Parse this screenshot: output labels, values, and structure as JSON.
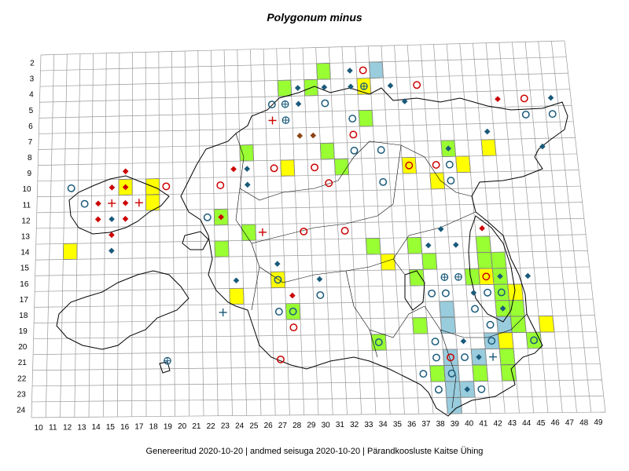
{
  "title": "Polygonum minus",
  "footer": "Genereeritud 2020-10-20  |  andmed seisuga 2020-10-20  |  Pärandkoosluste Kaitse Ühing",
  "grid": {
    "row_labels": [
      "2",
      "3",
      "4",
      "5",
      "6",
      "7",
      "8",
      "9",
      "10",
      "11",
      "12",
      "13",
      "14",
      "15",
      "16",
      "17",
      "18",
      "19",
      "20",
      "21",
      "22",
      "23",
      "24"
    ],
    "col_labels": [
      "10",
      "11",
      "12",
      "13",
      "14",
      "15",
      "16",
      "17",
      "18",
      "19",
      "20",
      "21",
      "22",
      "23",
      "24",
      "25",
      "26",
      "27",
      "28",
      "29",
      "30",
      "31",
      "32",
      "33",
      "34",
      "35",
      "36",
      "37",
      "38",
      "39",
      "40",
      "41",
      "42",
      "43",
      "44",
      "45",
      "46",
      "47",
      "48",
      "49"
    ]
  },
  "colors": {
    "green_cell": "#99ff33",
    "yellow_cell": "#ffff00",
    "blue_cell": "#99ccdd",
    "red_marker": "#cc0000",
    "blue_marker": "#1a5a7a",
    "brown_marker": "#8b4513",
    "grid_line": "#999999",
    "coastline": "#000000"
  },
  "marker_types": [
    "green-square",
    "yellow-square",
    "blue-square",
    "red-circle",
    "blue-circle",
    "red-diamond",
    "blue-diamond",
    "brown-diamond",
    "red-cross",
    "blue-cross",
    "blue-circle-cross"
  ],
  "cells": [
    {
      "c": "31",
      "r": "3",
      "t": "green-square"
    },
    {
      "c": "35",
      "r": "3",
      "t": "blue-square"
    },
    {
      "c": "28",
      "r": "4",
      "t": "green-square"
    },
    {
      "c": "30",
      "r": "4",
      "t": "green-square"
    },
    {
      "c": "34",
      "r": "4",
      "t": "yellow-square"
    },
    {
      "c": "34",
      "r": "6",
      "t": "green-square"
    },
    {
      "c": "43",
      "r": "8",
      "t": "yellow-square"
    },
    {
      "c": "40",
      "r": "8",
      "t": "green-square"
    },
    {
      "c": "25",
      "r": "8",
      "t": "green-square"
    },
    {
      "c": "28",
      "r": "9",
      "t": "yellow-square"
    },
    {
      "c": "31",
      "r": "8",
      "t": "green-square"
    },
    {
      "c": "32",
      "r": "9",
      "t": "green-square"
    },
    {
      "c": "37",
      "r": "9",
      "t": "yellow-square"
    },
    {
      "c": "41",
      "r": "9",
      "t": "yellow-square"
    },
    {
      "c": "39",
      "r": "10",
      "t": "yellow-square"
    },
    {
      "c": "16",
      "r": "10",
      "t": "yellow-square"
    },
    {
      "c": "18",
      "r": "10",
      "t": "yellow-square"
    },
    {
      "c": "18",
      "r": "11",
      "t": "yellow-square"
    },
    {
      "c": "23",
      "r": "12",
      "t": "green-square"
    },
    {
      "c": "25",
      "r": "13",
      "t": "green-square"
    },
    {
      "c": "12",
      "r": "14",
      "t": "yellow-square"
    },
    {
      "c": "23",
      "r": "14",
      "t": "green-square"
    },
    {
      "c": "34",
      "r": "14",
      "t": "green-square"
    },
    {
      "c": "37",
      "r": "14",
      "t": "green-square"
    },
    {
      "c": "42",
      "r": "14",
      "t": "green-square"
    },
    {
      "c": "35",
      "r": "15",
      "t": "yellow-square"
    },
    {
      "c": "38",
      "r": "15",
      "t": "green-square"
    },
    {
      "c": "42",
      "r": "15",
      "t": "green-square"
    },
    {
      "c": "43",
      "r": "15",
      "t": "green-square"
    },
    {
      "c": "37",
      "r": "16",
      "t": "green-square"
    },
    {
      "c": "41",
      "r": "16",
      "t": "green-square"
    },
    {
      "c": "42",
      "r": "16",
      "t": "yellow-square"
    },
    {
      "c": "43",
      "r": "16",
      "t": "green-square"
    },
    {
      "c": "27",
      "r": "16",
      "t": "yellow-square"
    },
    {
      "c": "24",
      "r": "17",
      "t": "yellow-square"
    },
    {
      "c": "43",
      "r": "17",
      "t": "green-square"
    },
    {
      "c": "44",
      "r": "17",
      "t": "yellow-square"
    },
    {
      "c": "28",
      "r": "18",
      "t": "green-square"
    },
    {
      "c": "39",
      "r": "18",
      "t": "blue-square"
    },
    {
      "c": "43",
      "r": "18",
      "t": "green-square"
    },
    {
      "c": "44",
      "r": "18",
      "t": "green-square"
    },
    {
      "c": "37",
      "r": "19",
      "t": "green-square"
    },
    {
      "c": "39",
      "r": "19",
      "t": "blue-square"
    },
    {
      "c": "43",
      "r": "19",
      "t": "blue-square"
    },
    {
      "c": "44",
      "r": "19",
      "t": "green-square"
    },
    {
      "c": "46",
      "r": "19",
      "t": "yellow-square"
    },
    {
      "c": "34",
      "r": "20",
      "t": "green-square"
    },
    {
      "c": "42",
      "r": "20",
      "t": "blue-square"
    },
    {
      "c": "43",
      "r": "20",
      "t": "yellow-square"
    },
    {
      "c": "45",
      "r": "20",
      "t": "green-square"
    },
    {
      "c": "39",
      "r": "21",
      "t": "blue-square"
    },
    {
      "c": "41",
      "r": "21",
      "t": "blue-square"
    },
    {
      "c": "43",
      "r": "21",
      "t": "green-square"
    },
    {
      "c": "38",
      "r": "22",
      "t": "green-square"
    },
    {
      "c": "39",
      "r": "22",
      "t": "blue-square"
    },
    {
      "c": "41",
      "r": "22",
      "t": "green-square"
    },
    {
      "c": "43",
      "r": "22",
      "t": "green-square"
    },
    {
      "c": "39",
      "r": "23",
      "t": "blue-square"
    },
    {
      "c": "40",
      "r": "23",
      "t": "blue-square"
    },
    {
      "c": "39",
      "r": "24",
      "t": "blue-square"
    }
  ],
  "markers": [
    {
      "c": "33",
      "r": "3",
      "t": "blue-diamond"
    },
    {
      "c": "34",
      "r": "3",
      "t": "red-circle"
    },
    {
      "c": "29",
      "r": "4",
      "t": "blue-diamond"
    },
    {
      "c": "31",
      "r": "4",
      "t": "blue-diamond"
    },
    {
      "c": "33",
      "r": "4",
      "t": "blue-diamond"
    },
    {
      "c": "34",
      "r": "4",
      "t": "blue-circle-cross"
    },
    {
      "c": "36",
      "r": "4",
      "t": "blue-diamond"
    },
    {
      "c": "38",
      "r": "4",
      "t": "red-circle"
    },
    {
      "c": "27",
      "r": "5",
      "t": "blue-circle"
    },
    {
      "c": "28",
      "r": "5",
      "t": "blue-circle-cross"
    },
    {
      "c": "29",
      "r": "5",
      "t": "blue-diamond"
    },
    {
      "c": "31",
      "r": "5",
      "t": "blue-circle"
    },
    {
      "c": "37",
      "r": "5",
      "t": "blue-diamond"
    },
    {
      "c": "44",
      "r": "5",
      "t": "red-diamond"
    },
    {
      "c": "46",
      "r": "5",
      "t": "red-circle"
    },
    {
      "c": "48",
      "r": "5",
      "t": "blue-diamond"
    },
    {
      "c": "27",
      "r": "6",
      "t": "red-cross"
    },
    {
      "c": "28",
      "r": "6",
      "t": "blue-circle-cross"
    },
    {
      "c": "33",
      "r": "6",
      "t": "blue-circle"
    },
    {
      "c": "46",
      "r": "6",
      "t": "blue-circle"
    },
    {
      "c": "48",
      "r": "6",
      "t": "blue-circle"
    },
    {
      "c": "29",
      "r": "7",
      "t": "brown-diamond"
    },
    {
      "c": "30",
      "r": "7",
      "t": "brown-diamond"
    },
    {
      "c": "33",
      "r": "7",
      "t": "red-circle"
    },
    {
      "c": "43",
      "r": "7",
      "t": "blue-diamond"
    },
    {
      "c": "40",
      "r": "8",
      "t": "blue-diamond"
    },
    {
      "c": "33",
      "r": "8",
      "t": "blue-circle"
    },
    {
      "c": "35",
      "r": "8",
      "t": "blue-circle"
    },
    {
      "c": "47",
      "r": "8",
      "t": "blue-diamond"
    },
    {
      "c": "27",
      "r": "9",
      "t": "red-circle"
    },
    {
      "c": "25",
      "r": "9",
      "t": "blue-diamond"
    },
    {
      "c": "24",
      "r": "9",
      "t": "red-diamond"
    },
    {
      "c": "30",
      "r": "9",
      "t": "red-circle"
    },
    {
      "c": "37",
      "r": "9",
      "t": "red-circle"
    },
    {
      "c": "39",
      "r": "9",
      "t": "red-circle"
    },
    {
      "c": "40",
      "r": "9",
      "t": "blue-circle"
    },
    {
      "c": "16",
      "r": "9",
      "t": "red-diamond"
    },
    {
      "c": "12",
      "r": "10",
      "t": "blue-circle"
    },
    {
      "c": "15",
      "r": "10",
      "t": "red-diamond"
    },
    {
      "c": "16",
      "r": "10",
      "t": "red-diamond"
    },
    {
      "c": "19",
      "r": "10",
      "t": "red-circle"
    },
    {
      "c": "23",
      "r": "10",
      "t": "red-circle"
    },
    {
      "c": "25",
      "r": "10",
      "t": "blue-diamond"
    },
    {
      "c": "31",
      "r": "10",
      "t": "red-circle"
    },
    {
      "c": "35",
      "r": "10",
      "t": "blue-circle"
    },
    {
      "c": "40",
      "r": "10",
      "t": "blue-circle"
    },
    {
      "c": "13",
      "r": "11",
      "t": "blue-circle"
    },
    {
      "c": "14",
      "r": "11",
      "t": "red-diamond"
    },
    {
      "c": "15",
      "r": "11",
      "t": "red-cross"
    },
    {
      "c": "16",
      "r": "11",
      "t": "red-diamond"
    },
    {
      "c": "17",
      "r": "11",
      "t": "red-cross"
    },
    {
      "c": "14",
      "r": "12",
      "t": "red-diamond"
    },
    {
      "c": "15",
      "r": "12",
      "t": "blue-diamond"
    },
    {
      "c": "16",
      "r": "12",
      "t": "red-diamond"
    },
    {
      "c": "22",
      "r": "12",
      "t": "blue-circle"
    },
    {
      "c": "23",
      "r": "12",
      "t": "red-diamond"
    },
    {
      "c": "15",
      "r": "13",
      "t": "red-diamond"
    },
    {
      "c": "26",
      "r": "13",
      "t": "red-cross"
    },
    {
      "c": "29",
      "r": "13",
      "t": "red-circle"
    },
    {
      "c": "32",
      "r": "13",
      "t": "red-circle"
    },
    {
      "c": "39",
      "r": "13",
      "t": "blue-diamond"
    },
    {
      "c": "42",
      "r": "13",
      "t": "red-diamond"
    },
    {
      "c": "15",
      "r": "14",
      "t": "blue-diamond"
    },
    {
      "c": "38",
      "r": "14",
      "t": "blue-diamond"
    },
    {
      "c": "40",
      "r": "14",
      "t": "blue-diamond"
    },
    {
      "c": "27",
      "r": "15",
      "t": "blue-diamond"
    },
    {
      "c": "45",
      "r": "16",
      "t": "blue-diamond"
    },
    {
      "c": "24",
      "r": "16",
      "t": "blue-diamond"
    },
    {
      "c": "27",
      "r": "16",
      "t": "blue-circle"
    },
    {
      "c": "30",
      "r": "16",
      "t": "blue-diamond"
    },
    {
      "c": "39",
      "r": "16",
      "t": "blue-circle-cross"
    },
    {
      "c": "40",
      "r": "16",
      "t": "blue-circle-cross"
    },
    {
      "c": "42",
      "r": "16",
      "t": "red-circle"
    },
    {
      "c": "43",
      "r": "16",
      "t": "blue-diamond"
    },
    {
      "c": "30",
      "r": "17",
      "t": "blue-circle"
    },
    {
      "c": "28",
      "r": "17",
      "t": "red-diamond"
    },
    {
      "c": "38",
      "r": "17",
      "t": "blue-circle"
    },
    {
      "c": "39",
      "r": "17",
      "t": "blue-circle"
    },
    {
      "c": "41",
      "r": "17",
      "t": "blue-diamond"
    },
    {
      "c": "42",
      "r": "17",
      "t": "blue-circle"
    },
    {
      "c": "43",
      "r": "17",
      "t": "blue-circle"
    },
    {
      "c": "23",
      "r": "18",
      "t": "blue-cross"
    },
    {
      "c": "27",
      "r": "18",
      "t": "blue-circle"
    },
    {
      "c": "28",
      "r": "18",
      "t": "blue-circle"
    },
    {
      "c": "43",
      "r": "18",
      "t": "blue-diamond"
    },
    {
      "c": "41",
      "r": "18",
      "t": "blue-circle"
    },
    {
      "c": "28",
      "r": "19",
      "t": "red-circle"
    },
    {
      "c": "42",
      "r": "19",
      "t": "blue-circle"
    },
    {
      "c": "34",
      "r": "20",
      "t": "blue-circle"
    },
    {
      "c": "38",
      "r": "20",
      "t": "blue-circle"
    },
    {
      "c": "40",
      "r": "20",
      "t": "blue-diamond"
    },
    {
      "c": "42",
      "r": "20",
      "t": "blue-circle"
    },
    {
      "c": "45",
      "r": "20",
      "t": "blue-circle"
    },
    {
      "c": "19",
      "r": "21",
      "t": "blue-circle-cross"
    },
    {
      "c": "27",
      "r": "21",
      "t": "red-circle"
    },
    {
      "c": "38",
      "r": "21",
      "t": "blue-circle"
    },
    {
      "c": "39",
      "r": "21",
      "t": "red-circle"
    },
    {
      "c": "40",
      "r": "21",
      "t": "blue-circle"
    },
    {
      "c": "41",
      "r": "21",
      "t": "blue-diamond"
    },
    {
      "c": "42",
      "r": "21",
      "t": "blue-cross"
    },
    {
      "c": "37",
      "r": "22",
      "t": "blue-circle"
    },
    {
      "c": "39",
      "r": "22",
      "t": "blue-circle"
    },
    {
      "c": "38",
      "r": "23",
      "t": "blue-circle"
    },
    {
      "c": "40",
      "r": "23",
      "t": "blue-diamond"
    },
    {
      "c": "41",
      "r": "23",
      "t": "blue-circle"
    }
  ]
}
